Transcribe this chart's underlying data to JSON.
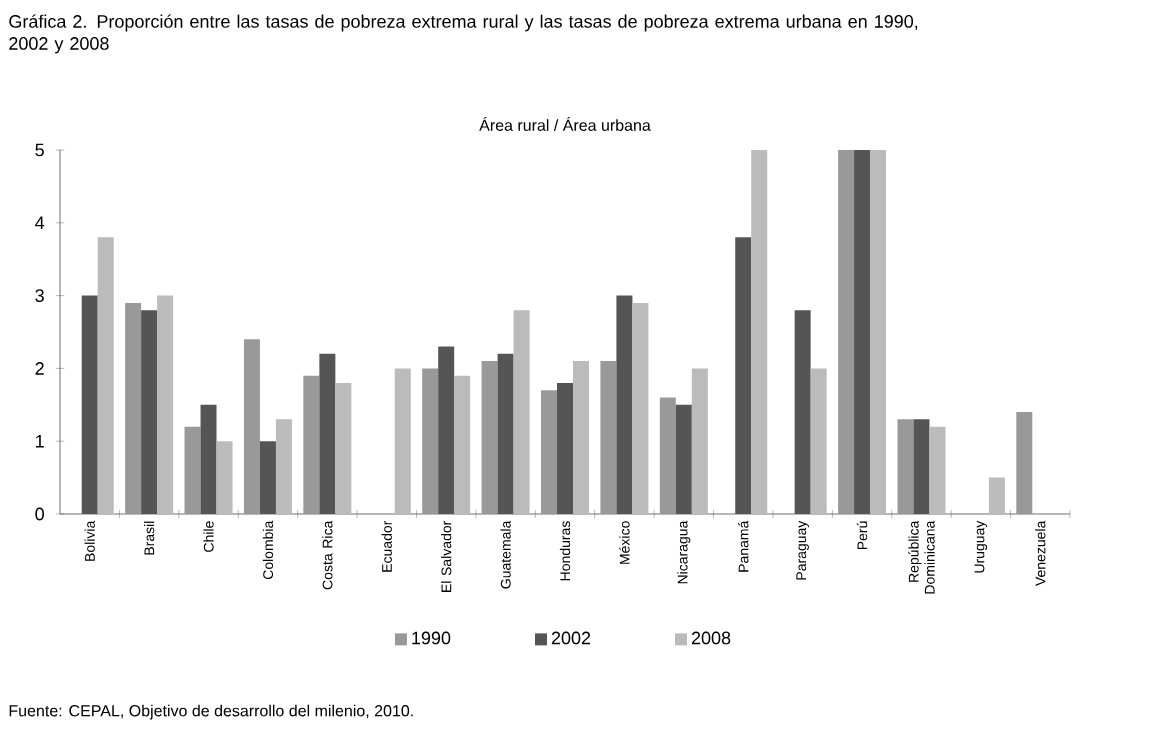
{
  "chart_data": {
    "type": "bar",
    "title": "Gráfica 2. Proporción entre las tasas de pobreza extrema rural y las tasas de pobreza extrema urbana en 1990, 2002 y 2008",
    "subtitle": "Área rural / Área urbana",
    "categories": [
      "Bolivia",
      "Brasil",
      "Chile",
      "Colombia",
      "Costa Rica",
      "Ecuador",
      "El Salvador",
      "Guatemala",
      "Honduras",
      "México",
      "Nicaragua",
      "Panamá",
      "Paraguay",
      "Perú",
      "República Dominicana",
      "Uruguay",
      "Venezuela"
    ],
    "series": [
      {
        "name": "1990",
        "color": "#999999",
        "values": [
          null,
          2.9,
          1.2,
          2.4,
          1.9,
          null,
          2.0,
          2.1,
          1.7,
          2.1,
          1.6,
          null,
          null,
          5,
          1.3,
          null,
          1.4
        ]
      },
      {
        "name": "2002",
        "color": "#555555",
        "values": [
          3.0,
          2.8,
          1.5,
          1.0,
          2.2,
          null,
          2.3,
          2.2,
          1.8,
          3.0,
          1.5,
          3.8,
          2.8,
          5,
          1.3,
          null,
          null
        ]
      },
      {
        "name": "2008",
        "color": "#bbbbbb",
        "values": [
          3.8,
          3.0,
          1.0,
          1.3,
          1.8,
          2.0,
          1.9,
          2.8,
          2.1,
          2.9,
          2.0,
          5.0,
          2.0,
          5,
          1.2,
          0.5,
          null
        ]
      }
    ],
    "ylim": [
      0,
      5
    ],
    "yticks": [
      0,
      1,
      2,
      3,
      4,
      5
    ],
    "grid": false,
    "legend": "bottom",
    "annotations": [
      "Fuente: CEPAL, Objetivo de desarrollo del milenio, 2010."
    ]
  }
}
